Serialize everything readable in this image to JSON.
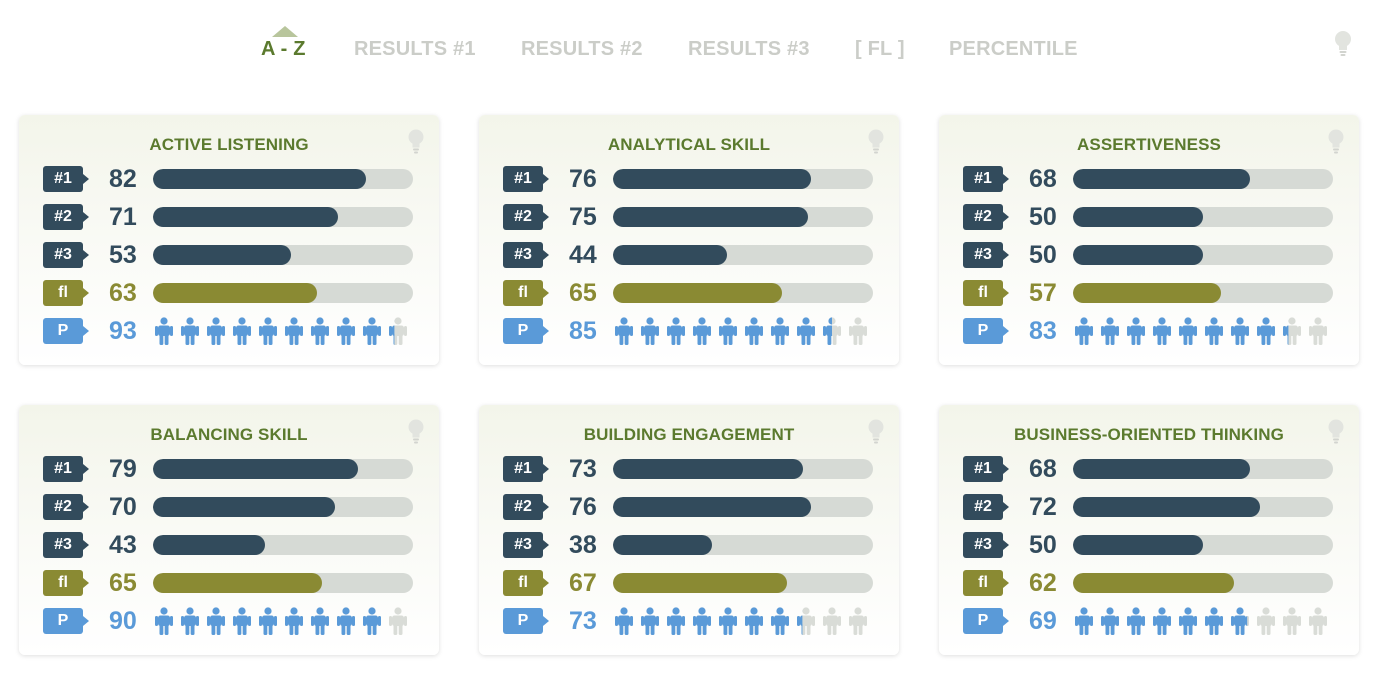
{
  "tabs": [
    {
      "label": "A - Z",
      "active": true
    },
    {
      "label": "RESULTS #1",
      "active": false
    },
    {
      "label": "RESULTS #2",
      "active": false
    },
    {
      "label": "RESULTS #3",
      "active": false
    },
    {
      "label": "[ FL ]",
      "active": false
    },
    {
      "label": "PERCENTILE",
      "active": false
    }
  ],
  "icons": {
    "header_tip": "lightbulb-icon",
    "card_tip": "lightbulb-icon",
    "person": "person-icon",
    "sort_indicator": "caret-up-icon"
  },
  "colors": {
    "accent_green": "#5b7a2e",
    "result_bar": "#324b5c",
    "fl_bar": "#8a8a33",
    "percentile_blue": "#5a9ad8",
    "track": "#d6dad5",
    "inactive_tab": "#cbcdc8"
  },
  "badges": {
    "r1": "#1",
    "r2": "#2",
    "r3": "#3",
    "fl": "fl",
    "p": "P"
  },
  "cards": [
    {
      "title": "ACTIVE LISTENING",
      "r1": 82,
      "r2": 71,
      "r3": 53,
      "fl": 63,
      "p": 93
    },
    {
      "title": "ANALYTICAL SKILL",
      "r1": 76,
      "r2": 75,
      "r3": 44,
      "fl": 65,
      "p": 85
    },
    {
      "title": "ASSERTIVENESS",
      "r1": 68,
      "r2": 50,
      "r3": 50,
      "fl": 57,
      "p": 83
    },
    {
      "title": "BALANCING SKILL",
      "r1": 79,
      "r2": 70,
      "r3": 43,
      "fl": 65,
      "p": 90
    },
    {
      "title": "BUILDING ENGAGEMENT",
      "r1": 73,
      "r2": 76,
      "r3": 38,
      "fl": 67,
      "p": 73
    },
    {
      "title": "BUSINESS-ORIENTED THINKING",
      "r1": 68,
      "r2": 72,
      "r3": 50,
      "fl": 62,
      "p": 69
    }
  ]
}
